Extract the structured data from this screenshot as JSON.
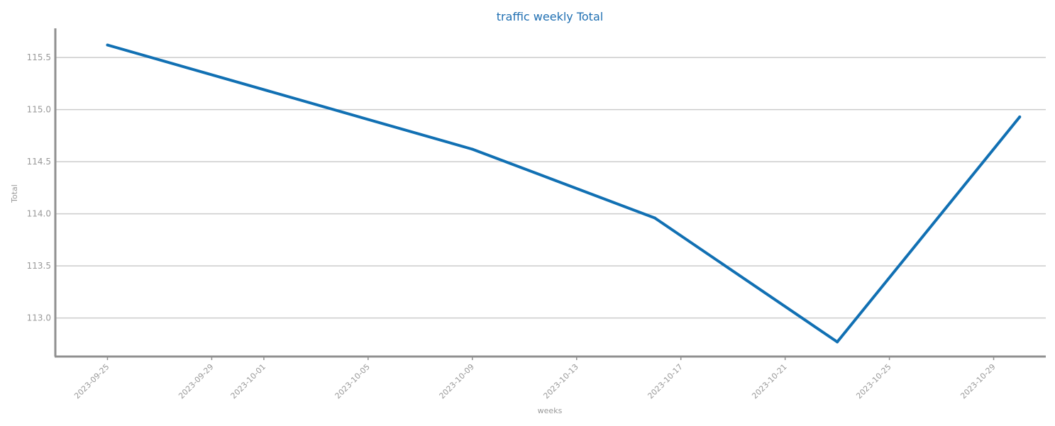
{
  "chart_data": {
    "type": "line",
    "title": "traffic weekly Total",
    "xlabel": "weeks",
    "ylabel": "Total",
    "x_axis_kind": "date",
    "x_tick_labels": [
      "2023-09-25",
      "2023-09-29",
      "2023-10-01",
      "2023-10-05",
      "2023-10-09",
      "2023-10-13",
      "2023-10-17",
      "2023-10-21",
      "2023-10-25",
      "2023-10-29"
    ],
    "y_tick_values": [
      113.0,
      113.5,
      114.0,
      114.5,
      115.0,
      115.5
    ],
    "y_tick_labels": [
      "113.0",
      "113.5",
      "114.0",
      "114.5",
      "115.0",
      "115.5"
    ],
    "ylim": [
      112.63,
      115.78
    ],
    "xlim": [
      "2023-09-23",
      "2023-10-31"
    ],
    "grid": "horizontal",
    "series": [
      {
        "color": "#1170b3",
        "points": [
          {
            "x": "2023-09-25",
            "y": 115.62
          },
          {
            "x": "2023-10-09",
            "y": 114.62
          },
          {
            "x": "2023-10-16",
            "y": 113.96
          },
          {
            "x": "2023-10-23",
            "y": 112.77
          },
          {
            "x": "2023-10-30",
            "y": 114.93
          }
        ]
      }
    ],
    "colors": {
      "title": "#1f6fb2",
      "axis": "#999999",
      "grid": "#cccccc",
      "spine": "#909090"
    }
  }
}
